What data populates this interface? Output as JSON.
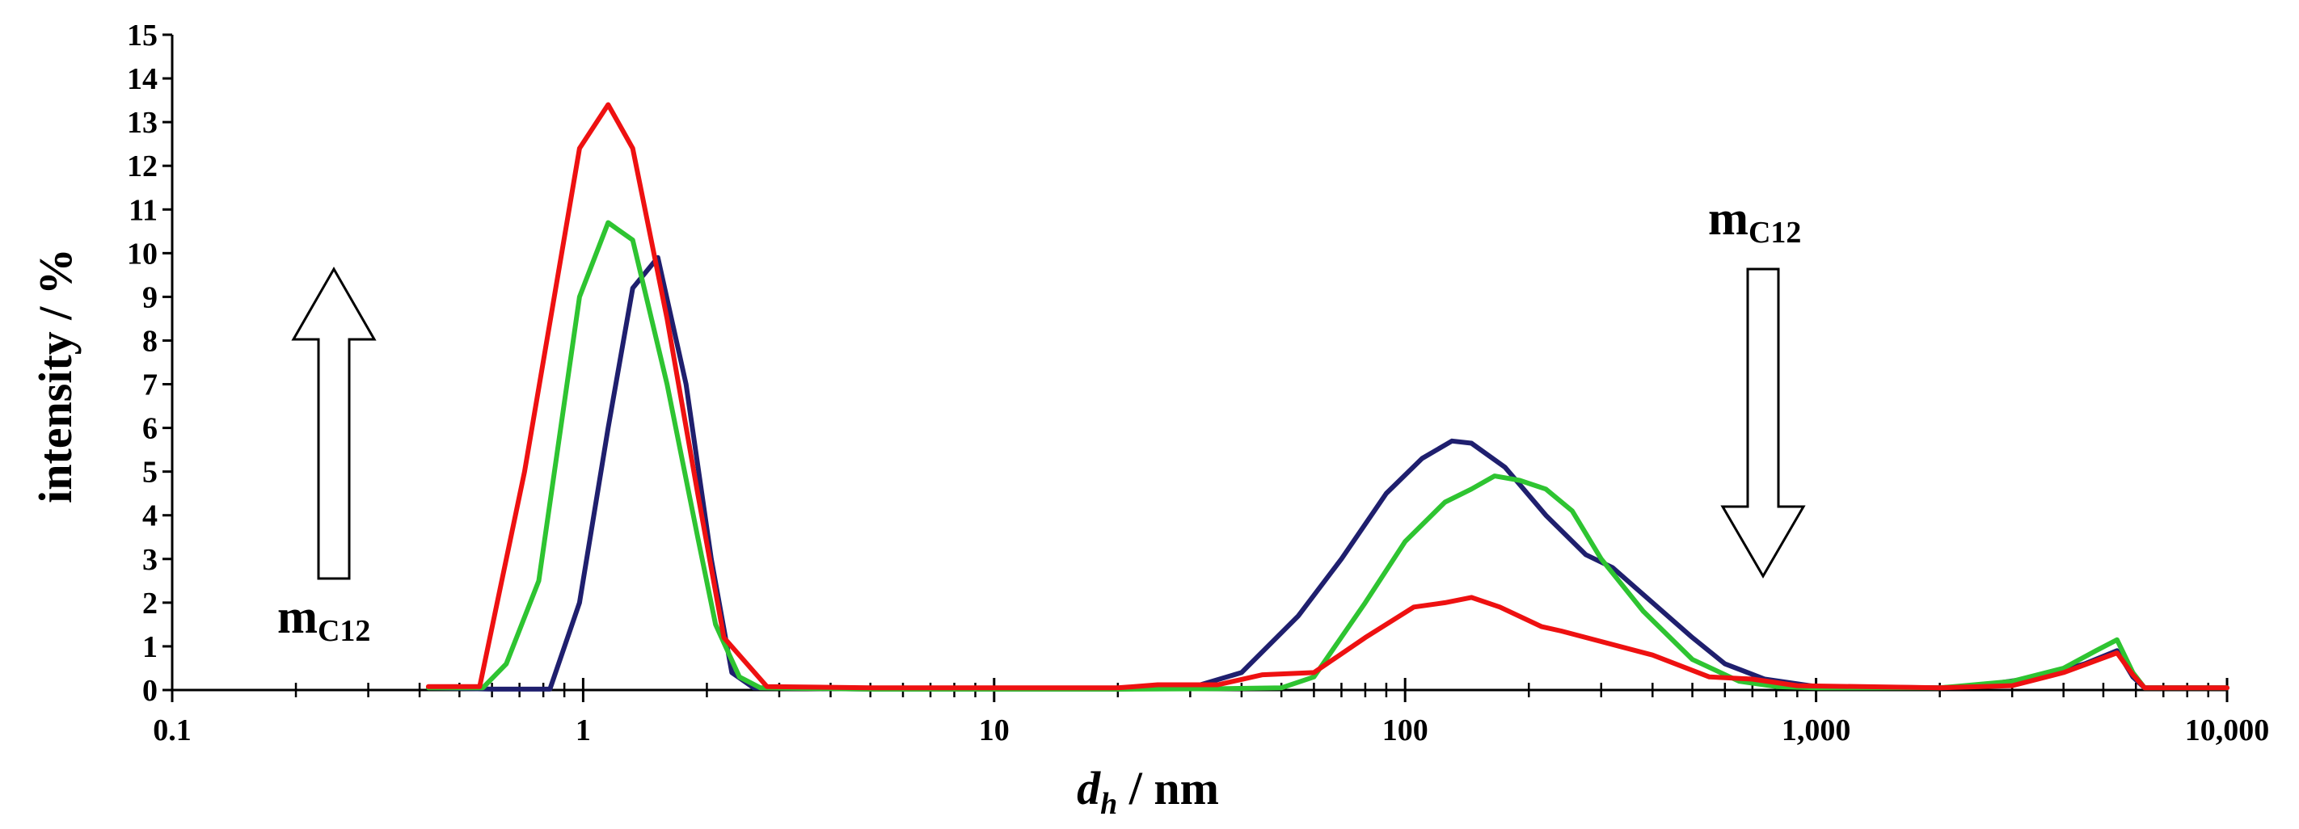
{
  "chart_data": {
    "type": "line",
    "title": "",
    "xlabel": {
      "italic": "d",
      "subscript": "h",
      "rest": " / nm"
    },
    "ylabel": "intensity / %",
    "xscale": "log",
    "xlim": [
      0.1,
      10000
    ],
    "ylim": [
      0,
      15
    ],
    "x_tick_labels": [
      "0.1",
      "1",
      "10",
      "100",
      "1,000",
      "10,000"
    ],
    "y_tick_labels": [
      "0",
      "1",
      "2",
      "3",
      "4",
      "5",
      "6",
      "7",
      "8",
      "9",
      "10",
      "11",
      "12",
      "13",
      "14",
      "15"
    ],
    "grid": false,
    "annotations": [
      {
        "text": "m",
        "subscript": "C12",
        "arrow": "up",
        "near": "left"
      },
      {
        "text": "m",
        "subscript": "C12",
        "arrow": "down",
        "near": "right"
      }
    ],
    "series": [
      {
        "name": "navy",
        "color": "#1f1f6e",
        "points": [
          [
            0.42,
            0.05
          ],
          [
            0.6,
            0.02
          ],
          [
            0.83,
            0.02
          ],
          [
            0.98,
            2.0
          ],
          [
            1.15,
            6.0
          ],
          [
            1.32,
            9.2
          ],
          [
            1.52,
            9.9
          ],
          [
            1.78,
            7.0
          ],
          [
            2.05,
            3.0
          ],
          [
            2.3,
            0.4
          ],
          [
            2.6,
            0.05
          ],
          [
            5,
            0.02
          ],
          [
            10,
            0.02
          ],
          [
            20,
            0.02
          ],
          [
            30,
            0.05
          ],
          [
            40,
            0.4
          ],
          [
            55,
            1.7
          ],
          [
            70,
            3.0
          ],
          [
            90,
            4.5
          ],
          [
            110,
            5.3
          ],
          [
            130,
            5.7
          ],
          [
            145,
            5.65
          ],
          [
            175,
            5.1
          ],
          [
            220,
            4.0
          ],
          [
            275,
            3.1
          ],
          [
            320,
            2.8
          ],
          [
            400,
            2.0
          ],
          [
            500,
            1.2
          ],
          [
            600,
            0.6
          ],
          [
            750,
            0.25
          ],
          [
            1000,
            0.08
          ],
          [
            2000,
            0.05
          ],
          [
            2500,
            0.1
          ],
          [
            3500,
            0.3
          ],
          [
            4500,
            0.6
          ],
          [
            5400,
            0.9
          ],
          [
            5900,
            0.3
          ],
          [
            6300,
            0.05
          ],
          [
            10000,
            0.05
          ]
        ]
      },
      {
        "name": "green",
        "color": "#2ec431",
        "points": [
          [
            0.42,
            0.05
          ],
          [
            0.57,
            0.05
          ],
          [
            0.65,
            0.6
          ],
          [
            0.78,
            2.5
          ],
          [
            0.98,
            9.0
          ],
          [
            1.15,
            10.7
          ],
          [
            1.32,
            10.3
          ],
          [
            1.6,
            7.0
          ],
          [
            1.9,
            3.5
          ],
          [
            2.1,
            1.5
          ],
          [
            2.4,
            0.3
          ],
          [
            2.7,
            0.05
          ],
          [
            5,
            0.02
          ],
          [
            10,
            0.02
          ],
          [
            20,
            0.02
          ],
          [
            35,
            0.03
          ],
          [
            50,
            0.05
          ],
          [
            60,
            0.3
          ],
          [
            80,
            2.0
          ],
          [
            100,
            3.4
          ],
          [
            125,
            4.3
          ],
          [
            145,
            4.6
          ],
          [
            165,
            4.9
          ],
          [
            190,
            4.8
          ],
          [
            220,
            4.6
          ],
          [
            255,
            4.1
          ],
          [
            300,
            3.0
          ],
          [
            380,
            1.8
          ],
          [
            500,
            0.7
          ],
          [
            650,
            0.2
          ],
          [
            800,
            0.08
          ],
          [
            1000,
            0.05
          ],
          [
            2000,
            0.05
          ],
          [
            3000,
            0.2
          ],
          [
            4000,
            0.5
          ],
          [
            4800,
            0.9
          ],
          [
            5400,
            1.15
          ],
          [
            5900,
            0.4
          ],
          [
            6300,
            0.05
          ],
          [
            10000,
            0.05
          ]
        ]
      },
      {
        "name": "red",
        "color": "#ee1111",
        "points": [
          [
            0.42,
            0.08
          ],
          [
            0.56,
            0.08
          ],
          [
            0.72,
            5.0
          ],
          [
            0.98,
            12.4
          ],
          [
            1.15,
            13.4
          ],
          [
            1.32,
            12.4
          ],
          [
            1.6,
            8.5
          ],
          [
            1.9,
            4.5
          ],
          [
            2.2,
            1.2
          ],
          [
            2.45,
            0.7
          ],
          [
            2.8,
            0.08
          ],
          [
            5,
            0.05
          ],
          [
            10,
            0.05
          ],
          [
            20,
            0.05
          ],
          [
            25,
            0.12
          ],
          [
            35,
            0.12
          ],
          [
            45,
            0.35
          ],
          [
            60,
            0.4
          ],
          [
            80,
            1.2
          ],
          [
            105,
            1.9
          ],
          [
            125,
            2.0
          ],
          [
            145,
            2.12
          ],
          [
            170,
            1.9
          ],
          [
            215,
            1.45
          ],
          [
            240,
            1.35
          ],
          [
            400,
            0.8
          ],
          [
            550,
            0.3
          ],
          [
            700,
            0.25
          ],
          [
            900,
            0.1
          ],
          [
            2000,
            0.05
          ],
          [
            3000,
            0.1
          ],
          [
            4000,
            0.4
          ],
          [
            5400,
            0.85
          ],
          [
            5900,
            0.35
          ],
          [
            6300,
            0.05
          ],
          [
            10000,
            0.05
          ]
        ]
      }
    ]
  }
}
